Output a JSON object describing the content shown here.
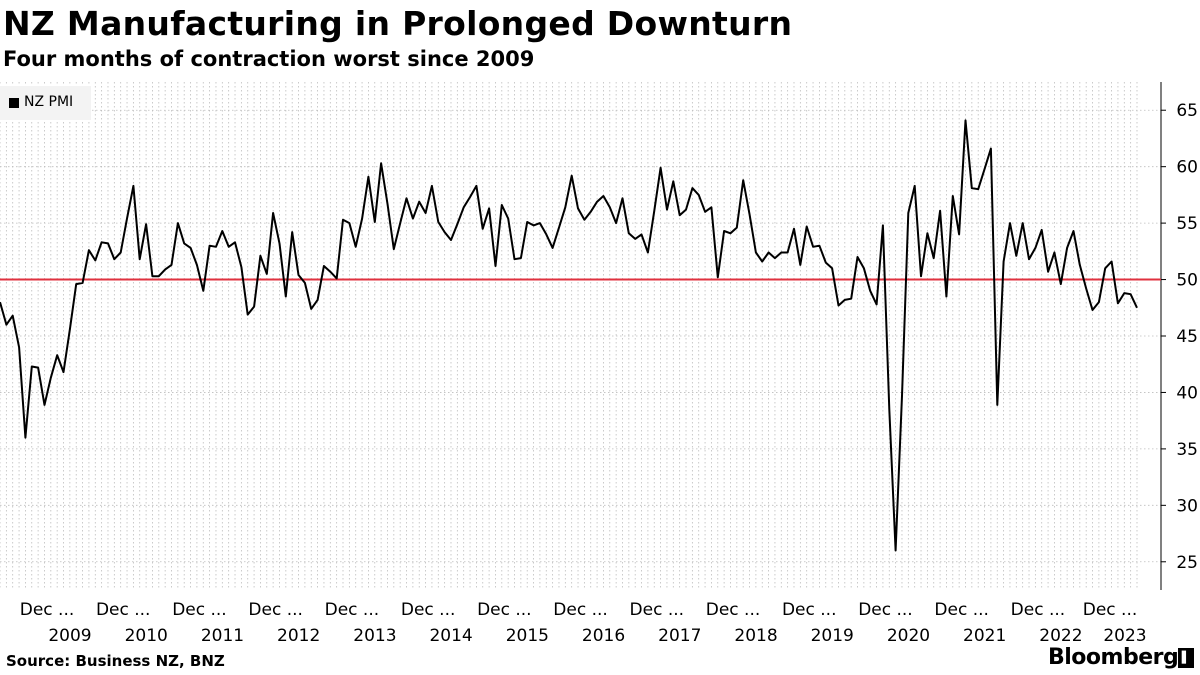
{
  "header": {
    "title": "NZ Manufacturing in Prolonged Downturn",
    "subtitle": "Four months of contraction worst since 2009"
  },
  "footer": {
    "source": "Source: Business NZ, BNZ",
    "brand": "Bloomberg",
    "brand_icon": "bloomberg-terminal-icon"
  },
  "colors": {
    "line": "#000000",
    "threshold": "#e0313f",
    "grid": "#bdbdbd",
    "legend_bg": "#f3f3f3"
  },
  "chart_data": {
    "type": "line",
    "x_start": "2008-12",
    "x_end": "2023-04",
    "frequency": "monthly",
    "ylim": [
      22.5,
      67.5
    ],
    "yticks": [
      25,
      30,
      35,
      40,
      45,
      50,
      55,
      60,
      65
    ],
    "y_axis_side": "right",
    "grid": "vertical dotted monthly, horizontal at y ticks",
    "legend": {
      "position": "top-left",
      "entries": [
        "NZ PMI"
      ]
    },
    "threshold": 50,
    "x_tick_labels": [
      {
        "top": "Dec ...",
        "year": "2009"
      },
      {
        "top": "Dec ...",
        "year": "2010"
      },
      {
        "top": "Dec ...",
        "year": "2011"
      },
      {
        "top": "Dec ...",
        "year": "2012"
      },
      {
        "top": "Dec ...",
        "year": "2013"
      },
      {
        "top": "Dec ...",
        "year": "2014"
      },
      {
        "top": "Dec ...",
        "year": "2015"
      },
      {
        "top": "Dec ...",
        "year": "2016"
      },
      {
        "top": "Dec ...",
        "year": "2017"
      },
      {
        "top": "Dec ...",
        "year": "2018"
      },
      {
        "top": "Dec ...",
        "year": "2019"
      },
      {
        "top": "Dec ...",
        "year": "2020"
      },
      {
        "top": "Dec ...",
        "year": "2021"
      },
      {
        "top": "Dec ...",
        "year": "2022"
      },
      {
        "top": "Dec ...",
        "year": "2023"
      }
    ],
    "series": [
      {
        "name": "NZ PMI",
        "values": [
          48.0,
          46.0,
          46.8,
          44.0,
          36.0,
          42.3,
          42.2,
          38.9,
          41.3,
          43.3,
          41.8,
          45.6,
          49.6,
          49.7,
          52.6,
          51.7,
          53.3,
          53.2,
          51.8,
          52.4,
          55.4,
          58.3,
          51.8,
          54.9,
          50.3,
          50.3,
          50.9,
          51.3,
          55.0,
          53.2,
          52.8,
          51.3,
          49.0,
          53.0,
          52.9,
          54.3,
          52.9,
          53.3,
          51.1,
          46.9,
          47.6,
          52.1,
          50.5,
          55.9,
          53.2,
          48.5,
          54.2,
          50.4,
          49.7,
          47.4,
          48.2,
          51.2,
          50.7,
          50.1,
          55.3,
          55.0,
          52.9,
          55.4,
          59.1,
          55.1,
          60.3,
          56.7,
          52.7,
          55.0,
          57.2,
          55.4,
          56.9,
          55.9,
          58.3,
          55.1,
          54.2,
          53.5,
          54.9,
          56.4,
          57.3,
          58.3,
          54.5,
          56.3,
          51.2,
          56.6,
          55.4,
          51.8,
          51.9,
          55.1,
          54.8,
          55.0,
          54.0,
          52.8,
          54.6,
          56.4,
          59.2,
          56.3,
          55.3,
          56.0,
          56.9,
          57.4,
          56.4,
          55.0,
          57.2,
          54.1,
          53.6,
          54.0,
          52.4,
          56.1,
          59.9,
          56.2,
          58.7,
          55.7,
          56.2,
          58.1,
          57.5,
          56.0,
          56.4,
          50.2,
          54.3,
          54.1,
          54.6,
          58.8,
          55.8,
          52.4,
          51.6,
          52.4,
          51.9,
          52.4,
          52.4,
          54.5,
          51.3,
          54.7,
          52.9,
          53.0,
          51.5,
          51.0,
          47.7,
          48.2,
          48.3,
          52.0,
          51.0,
          49.0,
          47.8,
          54.8,
          38.5,
          26.0,
          39.7,
          55.9,
          58.3,
          50.3,
          54.1,
          51.9,
          56.1,
          48.5,
          57.4,
          54.0,
          64.1,
          58.1,
          58.0,
          59.8,
          61.6,
          38.9,
          51.6,
          55.0,
          52.1,
          55.0,
          51.8,
          52.8,
          54.4,
          50.7,
          52.4,
          49.6,
          52.8,
          54.3,
          51.3,
          49.2,
          47.3,
          48.0,
          51.0,
          51.6,
          47.9,
          48.8,
          48.7,
          47.5
        ]
      }
    ]
  }
}
